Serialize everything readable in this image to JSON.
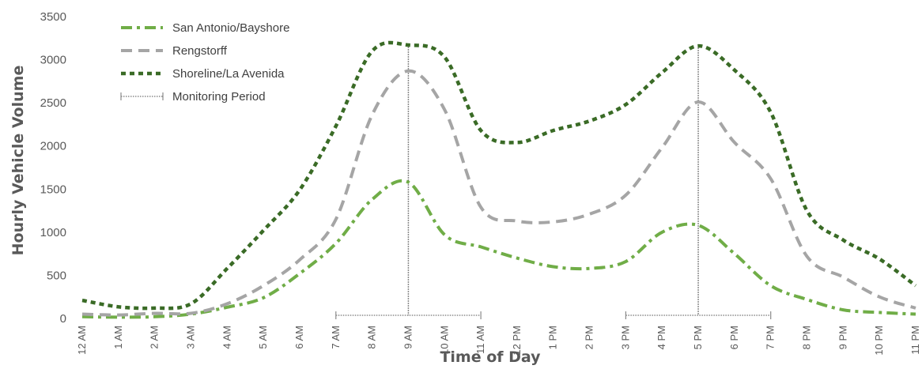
{
  "chart_data": {
    "type": "line",
    "xlabel": "Time of Day",
    "ylabel": "Hourly Vehicle Volume",
    "ylim": [
      0,
      3500
    ],
    "yticks": [
      0,
      500,
      1000,
      1500,
      2000,
      2500,
      3000,
      3500
    ],
    "categories": [
      "12 AM",
      "1 AM",
      "2 AM",
      "3 AM",
      "4 AM",
      "5 AM",
      "6 AM",
      "7 AM",
      "8 AM",
      "9 AM",
      "10 AM",
      "11 AM",
      "12 PM",
      "1 PM",
      "2 PM",
      "3 PM",
      "4 PM",
      "5 PM",
      "6 PM",
      "7 PM",
      "8 PM",
      "9 PM",
      "10 PM",
      "11 PM"
    ],
    "x_hours": [
      0,
      1,
      2,
      3,
      4,
      5,
      6,
      7,
      8,
      9,
      10,
      11,
      12,
      13,
      14,
      15,
      16,
      17,
      18,
      19,
      20,
      21,
      22,
      23
    ],
    "legend_position": "top-left",
    "grid": false,
    "series": [
      {
        "name": "San Antonio/Bayshore",
        "color": "#70ad47",
        "dash": "dash-dot",
        "values": [
          20,
          15,
          20,
          50,
          130,
          240,
          520,
          870,
          1380,
          1580,
          970,
          830,
          700,
          600,
          580,
          660,
          1000,
          1080,
          750,
          380,
          220,
          100,
          70,
          50
        ]
      },
      {
        "name": "Rengstorff",
        "color": "#a5a5a5",
        "dash": "dash",
        "values": [
          50,
          40,
          60,
          60,
          170,
          380,
          680,
          1150,
          2360,
          2870,
          2420,
          1290,
          1130,
          1120,
          1210,
          1430,
          1980,
          2510,
          2040,
          1620,
          720,
          480,
          250,
          120
        ]
      },
      {
        "name": "Shoreline/La Avenida",
        "color": "#3a6b26",
        "dash": "dot",
        "values": [
          210,
          135,
          120,
          170,
          580,
          1020,
          1490,
          2230,
          3100,
          3170,
          3030,
          2180,
          2040,
          2180,
          2290,
          2480,
          2850,
          3160,
          2880,
          2390,
          1250,
          910,
          690,
          380
        ]
      }
    ],
    "monitoring_periods": [
      {
        "start_hour": 7,
        "end_hour": 11,
        "marker_hour": 9,
        "marker_value": 3150
      },
      {
        "start_hour": 15,
        "end_hour": 19,
        "marker_hour": 17,
        "marker_value": 3140
      }
    ],
    "monitoring_label": "Monitoring Period",
    "monitoring_color": "#8a8a8a"
  }
}
